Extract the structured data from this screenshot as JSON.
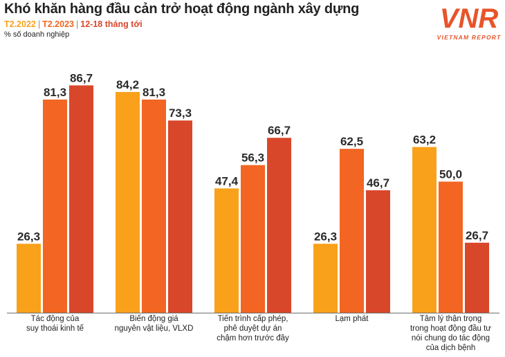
{
  "header": {
    "title": "Khó khăn hàng đầu cản trở hoạt động ngành xây dựng",
    "unit": "% số doanh nghiệp"
  },
  "logo": {
    "mark": "VNR",
    "text": "VIETNAM REPORT"
  },
  "chart_data": {
    "type": "bar",
    "title": "Khó khăn hàng đầu cản trở hoạt động ngành xây dựng",
    "ylabel": "% số doanh nghiệp",
    "ylim": [
      0,
      100
    ],
    "grid": false,
    "legend_position": "top-left",
    "categories": [
      "Tác động của\nsuy thoái kinh tế",
      "Biến động giá\nnguyên vật liệu, VLXD",
      "Tiến trình cấp phép,\nphê duyệt dự án\nchậm hơn trước đây",
      "Lạm phát",
      "Tâm lý thận trọng\ntrong hoạt động đầu tư\nnói chung do tác động\ncủa dịch bệnh"
    ],
    "series": [
      {
        "name": "T2.2022",
        "color": "#f9a11b",
        "values": [
          26.3,
          84.2,
          47.4,
          26.3,
          63.2
        ],
        "labels": [
          "26,3",
          "84,2",
          "47,4",
          "26,3",
          "63,2"
        ]
      },
      {
        "name": "T2.2023",
        "color": "#f26522",
        "values": [
          81.3,
          81.3,
          56.3,
          62.5,
          50.0
        ],
        "labels": [
          "81,3",
          "81,3",
          "56,3",
          "62,5",
          "50,0"
        ]
      },
      {
        "name": "12-18 tháng tới",
        "color": "#d9472b",
        "values": [
          86.7,
          73.3,
          66.7,
          46.7,
          26.7
        ],
        "labels": [
          "86,7",
          "73,3",
          "66,7",
          "46,7",
          "26,7"
        ]
      }
    ]
  }
}
